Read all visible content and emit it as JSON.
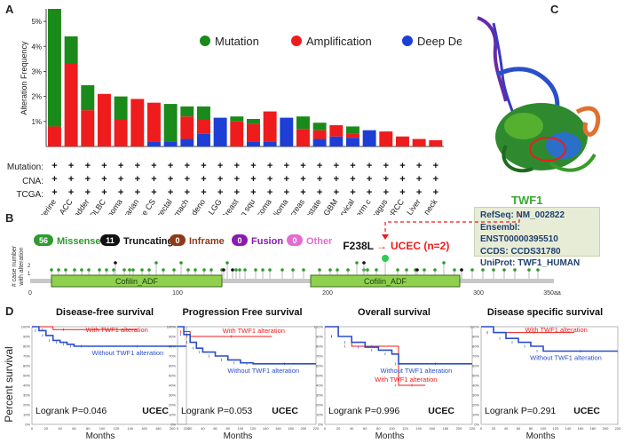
{
  "panels": {
    "a": "A",
    "b": "B",
    "c": "C",
    "d": "D"
  },
  "colors": {
    "mutation": "#1a8a1a",
    "amplification": "#ee1c1c",
    "deletion": "#1d3fd6",
    "missense": "#2e9b2e",
    "truncating": "#111111",
    "inframe": "#8b3a1a",
    "fusion": "#8a1ab0",
    "other": "#e26bd4",
    "domain": "#8fd14f",
    "surv_with": "#ee1c1c",
    "surv_without": "#2a4fc8"
  },
  "legend": {
    "mutation": "Mutation",
    "amplification": "Amplification",
    "deletion": "Deep Deletion"
  },
  "rowlabels": {
    "mutation": "Mutation:",
    "cna": "CNA:",
    "tcga": "TCGA:"
  },
  "plus": "+",
  "lollipop": {
    "ylabel1": "# case number",
    "ylabel2": "with alteration",
    "domain_label": "Cofilin_ADF",
    "ticks": [
      "0",
      "100",
      "200",
      "300",
      "350aa"
    ],
    "legend": [
      {
        "count": "56",
        "label": "Missense",
        "key": "missense"
      },
      {
        "count": "11",
        "label": "Truncating",
        "key": "truncating"
      },
      {
        "count": "0",
        "label": "Inframe",
        "key": "inframe"
      },
      {
        "count": "0",
        "label": "Fusion",
        "key": "fusion"
      },
      {
        "count": "0",
        "label": "Other",
        "key": "other"
      }
    ],
    "hotspot_mutation": "F238L",
    "hotspot_arrow": "→",
    "hotspot_label": "UCEC (n=2)"
  },
  "protein": {
    "name": "TWF1",
    "refseq": "RefSeq: NM_002822",
    "ensembl": "Ensembl: ENST00000395510",
    "ccds": "CCDS: CCDS31780",
    "uniprot": "UniProt: TWF1_HUMAN"
  },
  "chart_data": [
    {
      "type": "bar",
      "title": "",
      "ylabel": "Alteration Frequency",
      "ylim": [
        0,
        5.5
      ],
      "yticks": [
        "1%",
        "2%",
        "3%",
        "4%",
        "5%"
      ],
      "categories": [
        "Uterine",
        "ACC",
        "Bladder",
        "DLBC",
        "Melanoma",
        "Ovarian",
        "Uterine CS",
        "Colorectal",
        "Stomach",
        "Lung adeno",
        "LGG",
        "Breast",
        "Lung squ",
        "Sarcoma",
        "Mesothelioma",
        "Pancreas",
        "Prostate",
        "GBM",
        "Cervical",
        "Testicular germ c",
        "Esophagus",
        "pRCC",
        "Liver",
        "Head & neck"
      ],
      "series": [
        {
          "name": "Mutation",
          "values": [
            4.7,
            1.1,
            1.0,
            0,
            0.9,
            0,
            0,
            1.5,
            0.4,
            0.5,
            0,
            0.2,
            0.2,
            0,
            0,
            0.5,
            0.3,
            0,
            0.3,
            0,
            0,
            0,
            0,
            0
          ]
        },
        {
          "name": "Amplification",
          "values": [
            0.8,
            3.3,
            1.45,
            2.1,
            1.1,
            1.9,
            1.55,
            0,
            0.9,
            0.6,
            0,
            1.0,
            0.7,
            1.2,
            0,
            0.7,
            0.35,
            0.45,
            0.15,
            0,
            0.6,
            0.4,
            0.3,
            0.25
          ]
        },
        {
          "name": "Deep Deletion",
          "values": [
            0,
            0,
            0,
            0,
            0,
            0,
            0.2,
            0.2,
            0.3,
            0.5,
            1.15,
            0,
            0.2,
            0.2,
            1.15,
            0,
            0.3,
            0.4,
            0.35,
            0.65,
            0,
            0,
            0,
            0
          ]
        }
      ]
    },
    {
      "type": "line",
      "title": "Disease-free survival",
      "xlabel": "Months",
      "ylabel": "Percent survival",
      "xlim": [
        0,
        220
      ],
      "ylim": [
        0,
        100
      ],
      "xticks": [
        "0",
        "20",
        "40",
        "60",
        "80",
        "100",
        "120",
        "140",
        "160",
        "180",
        "200",
        "220"
      ],
      "yticks": [
        "0%",
        "10%",
        "20%",
        "30%",
        "40%",
        "50%",
        "60%",
        "70%",
        "80%",
        "90%",
        "100%"
      ],
      "series": [
        {
          "name": "With TWF1 alteration",
          "x": [
            0,
            30,
            60,
            150
          ],
          "y": [
            100,
            97,
            97,
            97
          ]
        },
        {
          "name": "Without TWF1 alteration",
          "x": [
            0,
            10,
            20,
            30,
            40,
            50,
            60,
            80,
            220
          ],
          "y": [
            100,
            96,
            91,
            86,
            84,
            82,
            80,
            80,
            80
          ]
        }
      ],
      "stat": "Logrank P=0.046",
      "cohort": "UCEC"
    },
    {
      "type": "line",
      "title": "Progression Free survival",
      "xlabel": "Months",
      "ylabel": "Percent survival",
      "xlim": [
        0,
        220
      ],
      "ylim": [
        0,
        100
      ],
      "xticks": [
        "0",
        "20",
        "40",
        "60",
        "80",
        "100",
        "120",
        "140",
        "160",
        "180",
        "200",
        "220"
      ],
      "yticks": [
        "0%",
        "10%",
        "20%",
        "30%",
        "40%",
        "50%",
        "60%",
        "70%",
        "80%",
        "90%",
        "100%"
      ],
      "series": [
        {
          "name": "With TWF1 alteration",
          "x": [
            0,
            10,
            20,
            150
          ],
          "y": [
            100,
            95,
            90,
            90
          ]
        },
        {
          "name": "Without TWF1 alteration",
          "x": [
            0,
            10,
            20,
            30,
            40,
            60,
            80,
            100,
            120,
            220
          ],
          "y": [
            100,
            92,
            84,
            78,
            74,
            70,
            66,
            63,
            62,
            62
          ]
        }
      ],
      "stat": "Logrank P=0.053",
      "cohort": "UCEC"
    },
    {
      "type": "line",
      "title": "Overall survival",
      "xlabel": "Months",
      "ylabel": "Percent survival",
      "xlim": [
        0,
        220
      ],
      "ylim": [
        0,
        100
      ],
      "xticks": [
        "0",
        "20",
        "40",
        "60",
        "80",
        "100",
        "120",
        "140",
        "160",
        "180",
        "200",
        "220"
      ],
      "yticks": [
        "0%",
        "10%",
        "20%",
        "30%",
        "40%",
        "50%",
        "60%",
        "70%",
        "80%",
        "90%",
        "100%"
      ],
      "series": [
        {
          "name": "With TWF1 alteration",
          "x": [
            0,
            20,
            40,
            100,
            110,
            150
          ],
          "y": [
            100,
            90,
            80,
            80,
            40,
            40
          ]
        },
        {
          "name": "Without TWF1 alteration",
          "x": [
            0,
            20,
            40,
            60,
            80,
            100,
            110,
            220
          ],
          "y": [
            100,
            90,
            84,
            79,
            76,
            72,
            62,
            62
          ]
        }
      ],
      "stat": "Logrank P=0.996",
      "cohort": "UCEC"
    },
    {
      "type": "line",
      "title": "Disease specific survival",
      "xlabel": "Months",
      "ylabel": "Percent survival",
      "xlim": [
        0,
        220
      ],
      "ylim": [
        0,
        100
      ],
      "xticks": [
        "0",
        "20",
        "40",
        "60",
        "80",
        "100",
        "120",
        "140",
        "160",
        "180",
        "200",
        "220"
      ],
      "yticks": [
        "0%",
        "10%",
        "20%",
        "30%",
        "40%",
        "50%",
        "60%",
        "70%",
        "80%",
        "90%",
        "100%"
      ],
      "series": [
        {
          "name": "With TWF1 alteration",
          "x": [
            0,
            20,
            150
          ],
          "y": [
            100,
            94,
            94
          ]
        },
        {
          "name": "Without TWF1 alteration",
          "x": [
            0,
            20,
            40,
            60,
            80,
            100,
            220
          ],
          "y": [
            100,
            94,
            88,
            84,
            80,
            75,
            75
          ]
        }
      ],
      "stat": "Logrank P=0.291",
      "cohort": "UCEC"
    }
  ]
}
